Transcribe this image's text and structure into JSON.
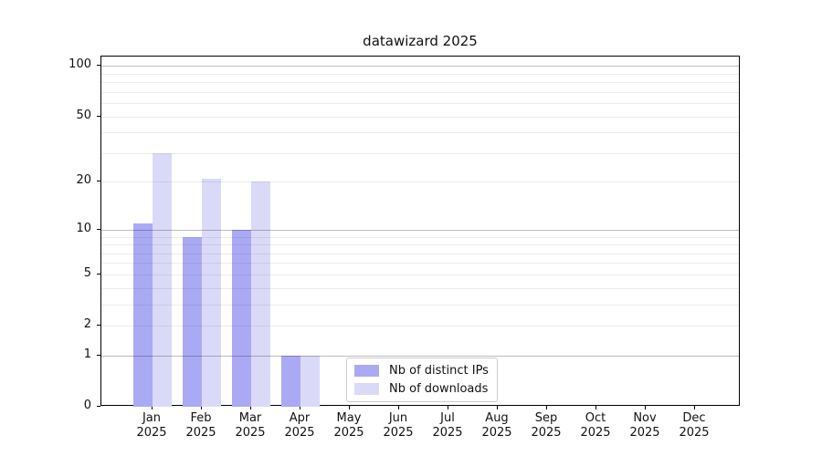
{
  "chart_data": {
    "type": "bar",
    "title": "datawizard 2025",
    "categories": [
      "Jan 2025",
      "Feb 2025",
      "Mar 2025",
      "Apr 2025",
      "May 2025",
      "Jun 2025",
      "Jul 2025",
      "Aug 2025",
      "Sep 2025",
      "Oct 2025",
      "Nov 2025",
      "Dec 2025"
    ],
    "series": [
      {
        "name": "Nb of distinct IPs",
        "color": "#aaaaf4",
        "values": [
          11,
          9,
          10,
          1,
          0,
          0,
          0,
          0,
          0,
          0,
          0,
          0
        ]
      },
      {
        "name": "Nb of downloads",
        "color": "#dadaf8",
        "values": [
          30,
          21,
          20,
          1,
          0,
          0,
          0,
          0,
          0,
          0,
          0,
          0
        ]
      }
    ],
    "xlabel": "",
    "ylabel": "",
    "y_scale": "log1p",
    "ylim": [
      0,
      113.5
    ],
    "y_ticks": [
      0,
      1,
      2,
      5,
      10,
      20,
      50,
      100
    ],
    "y_minor_gridlines": [
      2,
      3,
      4,
      5,
      6,
      7,
      8,
      9,
      20,
      30,
      40,
      50,
      60,
      70,
      80,
      90
    ],
    "y_major_gridlines": [
      1,
      10,
      100
    ],
    "grid": true,
    "grid_above_bars": true,
    "legend": {
      "position": "lower center (inside plot)",
      "entries": [
        "Nb of distinct IPs",
        "Nb of downloads"
      ]
    }
  }
}
